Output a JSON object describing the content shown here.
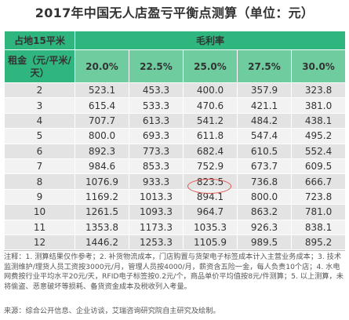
{
  "title": "2017年中国无人店盈亏平衡点测算（单位：元）",
  "header": {
    "corner_label": "占地15平米",
    "group_label": "毛利率",
    "row_header_label": "租金（元/平米/天）",
    "columns": [
      "20.0%",
      "22.5%",
      "25.0%",
      "27.5%",
      "30.0%"
    ]
  },
  "rows": [
    {
      "rent": "2",
      "values": [
        "523.1",
        "453.3",
        "400.0",
        "357.9",
        "323.8"
      ]
    },
    {
      "rent": "3",
      "values": [
        "615.4",
        "533.3",
        "470.6",
        "421.1",
        "381.0"
      ]
    },
    {
      "rent": "4",
      "values": [
        "707.7",
        "613.3",
        "541.2",
        "484.2",
        "438.1"
      ]
    },
    {
      "rent": "5",
      "values": [
        "800.0",
        "693.3",
        "611.8",
        "547.4",
        "495.2"
      ]
    },
    {
      "rent": "6",
      "values": [
        "892.3",
        "773.3",
        "682.4",
        "610.5",
        "552.4"
      ]
    },
    {
      "rent": "7",
      "values": [
        "984.6",
        "853.3",
        "752.9",
        "673.7",
        "609.5"
      ]
    },
    {
      "rent": "8",
      "values": [
        "1076.9",
        "933.3",
        "823.5",
        "736.8",
        "666.7"
      ]
    },
    {
      "rent": "9",
      "values": [
        "1169.2",
        "1013.3",
        "894.1",
        "800.0",
        "723.8"
      ]
    },
    {
      "rent": "10",
      "values": [
        "1261.5",
        "1093.3",
        "964.7",
        "863.2",
        "781.0"
      ]
    },
    {
      "rent": "11",
      "values": [
        "1353.8",
        "1173.3",
        "1035.3",
        "926.3",
        "838.1"
      ]
    },
    {
      "rent": "12",
      "values": [
        "1446.2",
        "1253.3",
        "1105.9",
        "989.5",
        "895.2"
      ]
    }
  ],
  "note": "注释：1. 测算结果仅作参考；2. 补货物流成本，门店购置与货架电子标签成本计入主营业务成本；3. 技术监测维护/理货人员工资按3000元/月，管理人员按4000/月，薪资含五险一金，每人负责10个店；4. 水电网费按行业平均水平20元/天，RFID电子标签按0.2元/个，商品单价平均值按8元/件测算；5. 以上测算，未将偷盗、恶意破坏等损耗、备货资金成本及税收列入考量。",
  "source": "来源：综合公开信息、企业访谈，艾瑞咨询研究院自主研究及绘制。",
  "colors": {
    "header_dark": "#2fb57e",
    "header_light": "#6fcc9f",
    "row_odd": "#e3e3e3",
    "row_even": "#f2f2f2",
    "highlight_circle": "#e35454"
  }
}
